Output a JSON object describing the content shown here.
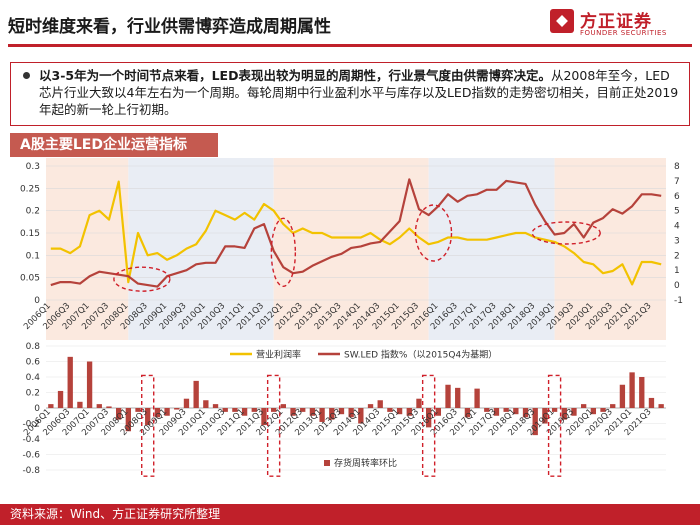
{
  "header": {
    "title": "短时维度来看，行业供需博弈造成周期属性",
    "logo_cn": "方正证券",
    "logo_en": "FOUNDER SECURITIES"
  },
  "note": {
    "strong": "以3-5年为一个时间节点来看，LED表现出较为明显的周期性，行业景气度由供需博弈决定。",
    "text": "从2008年至今，LED芯片行业大致以4年左右为一个周期。每轮周期中行业盈利水平与库存以及LED指数的走势密切相关，目前正处2019年起的新一轮上行初期。"
  },
  "chart_tag": "A股主要LED企业运营指标",
  "footer": "资料来源：Wind、方正证券研究所整理",
  "colors": {
    "accent": "#c0202a",
    "margin_line": "#f2c200",
    "index_line": "#b5423b",
    "bar": "#b5423b",
    "band_up": "#fbe9df",
    "band_down": "#e9edf4"
  },
  "chart_data": {
    "type": "line",
    "categories": [
      "2006Q1",
      "2006Q2",
      "2006Q3",
      "2006Q4",
      "2007Q1",
      "2007Q2",
      "2007Q3",
      "2007Q4",
      "2008Q1",
      "2008Q2",
      "2008Q3",
      "2008Q4",
      "2009Q1",
      "2009Q2",
      "2009Q3",
      "2009Q4",
      "2010Q1",
      "2010Q2",
      "2010Q3",
      "2010Q4",
      "2011Q1",
      "2011Q2",
      "2011Q3",
      "2011Q4",
      "2012Q1",
      "2012Q2",
      "2012Q3",
      "2012Q4",
      "2013Q1",
      "2013Q2",
      "2013Q3",
      "2013Q4",
      "2014Q1",
      "2014Q2",
      "2014Q3",
      "2014Q4",
      "2015Q1",
      "2015Q2",
      "2015Q3",
      "2015Q4",
      "2016Q1",
      "2016Q2",
      "2016Q3",
      "2016Q4",
      "2017Q1",
      "2017Q2",
      "2017Q3",
      "2017Q4",
      "2018Q1",
      "2018Q2",
      "2018Q3",
      "2018Q4",
      "2019Q1",
      "2019Q2",
      "2019Q3",
      "2019Q4",
      "2020Q1",
      "2020Q2",
      "2020Q3",
      "2020Q4",
      "2021Q1",
      "2021Q2",
      "2021Q3",
      "2021Q4"
    ],
    "x_tick_labels": [
      "2006Q1",
      "2006Q3",
      "2007Q1",
      "2007Q3",
      "2008Q1",
      "2008Q3",
      "2009Q1",
      "2009Q3",
      "2010Q1",
      "2010Q3",
      "2011Q1",
      "2011Q3",
      "2012Q1",
      "2012Q3",
      "2013Q1",
      "2013Q3",
      "2014Q1",
      "2014Q3",
      "2015Q1",
      "2015Q3",
      "2016Q1",
      "2016Q3",
      "2017Q1",
      "2017Q3",
      "2018Q1",
      "2018Q3",
      "2019Q1",
      "2019Q3",
      "2020Q1",
      "2020Q3",
      "2021Q1",
      "2021Q3"
    ],
    "top": {
      "left_ylim": [
        0,
        0.3
      ],
      "left_ticks": [
        "0",
        "0.05",
        "0.1",
        "0.15",
        "0.2",
        "0.25",
        "0.3"
      ],
      "right_ylim": [
        -1,
        8
      ],
      "right_ticks": [
        "-1",
        "0",
        "1",
        "2",
        "3",
        "4",
        "5",
        "6",
        "7",
        "8"
      ],
      "series": [
        {
          "name": "营业利润率",
          "axis": "left",
          "values": [
            0.115,
            0.115,
            0.105,
            0.12,
            0.19,
            0.2,
            0.18,
            0.265,
            0.04,
            0.15,
            0.1,
            0.105,
            0.09,
            0.1,
            0.115,
            0.125,
            0.155,
            0.2,
            0.19,
            0.18,
            0.195,
            0.18,
            0.215,
            0.2,
            0.17,
            0.15,
            0.16,
            0.15,
            0.15,
            0.14,
            0.14,
            0.14,
            0.14,
            0.15,
            0.135,
            0.125,
            0.14,
            0.16,
            0.14,
            0.125,
            0.13,
            0.14,
            0.14,
            0.135,
            0.135,
            0.135,
            0.14,
            0.145,
            0.15,
            0.15,
            0.14,
            0.135,
            0.13,
            0.12,
            0.105,
            0.085,
            0.08,
            0.06,
            0.065,
            0.08,
            0.035,
            0.085,
            0.085,
            0.08
          ]
        },
        {
          "name": "SW.LED 指数%（以2015Q4为基期）",
          "axis": "right",
          "values": [
            0,
            0.2,
            0.2,
            0.1,
            0.6,
            0.9,
            0.8,
            0.7,
            0.6,
            0.1,
            0,
            -0.1,
            0.6,
            0.8,
            1,
            1.4,
            1.5,
            1.5,
            2.6,
            2.6,
            2.5,
            3.8,
            4.1,
            2.3,
            1.2,
            0.8,
            0.9,
            1.3,
            1.6,
            1.9,
            2.1,
            2.5,
            2.6,
            2.8,
            2.9,
            3.6,
            4.3,
            7.1,
            5.1,
            4.7,
            5.3,
            6.1,
            5.6,
            6,
            6.1,
            6.4,
            6.4,
            7,
            6.9,
            6.8,
            5.4,
            4.3,
            3.4,
            3.5,
            4.1,
            3.2,
            4.2,
            4.5,
            5.1,
            4.8,
            5.3,
            6.1,
            6.1,
            6
          ]
        }
      ],
      "bands": [
        {
          "from": "2006Q1",
          "to": "2008Q1",
          "kind": "up"
        },
        {
          "from": "2008Q1",
          "to": "2011Q4",
          "kind": "down"
        },
        {
          "from": "2011Q4",
          "to": "2015Q4",
          "kind": "up"
        },
        {
          "from": "2015Q4",
          "to": "2019Q1",
          "kind": "down"
        },
        {
          "from": "2019Q1",
          "to": "2021Q4",
          "kind": "up"
        }
      ],
      "legend": "bottom"
    },
    "bottom": {
      "type": "bar",
      "ylim": [
        -0.8,
        0.8
      ],
      "ticks": [
        "-0.8",
        "-0.6",
        "-0.4",
        "-0.2",
        "0",
        "0.2",
        "0.4",
        "0.6",
        "0.8"
      ],
      "series": [
        {
          "name": "存货周转率环比",
          "values": [
            0.05,
            0.22,
            0.66,
            0.08,
            0.6,
            0.05,
            0.02,
            -0.15,
            -0.3,
            -0.05,
            -0.22,
            -0.12,
            -0.1,
            -0.02,
            0.12,
            0.35,
            0.1,
            0.05,
            -0.05,
            -0.05,
            -0.1,
            -0.05,
            -0.22,
            -0.05,
            0.05,
            -0.1,
            -0.05,
            -0.1,
            -0.18,
            -0.15,
            -0.08,
            -0.12,
            -0.2,
            0.05,
            0.1,
            -0.05,
            -0.08,
            -0.1,
            0.12,
            -0.25,
            -0.1,
            0.3,
            0.26,
            -0.12,
            0.25,
            -0.05,
            -0.1,
            -0.05,
            -0.08,
            -0.12,
            -0.35,
            -0.2,
            -0.05,
            -0.15,
            -0.1,
            0.05,
            -0.08,
            -0.05,
            0.05,
            0.3,
            0.46,
            0.4,
            0.13,
            0.05
          ]
        }
      ],
      "legend": "bottom"
    }
  }
}
